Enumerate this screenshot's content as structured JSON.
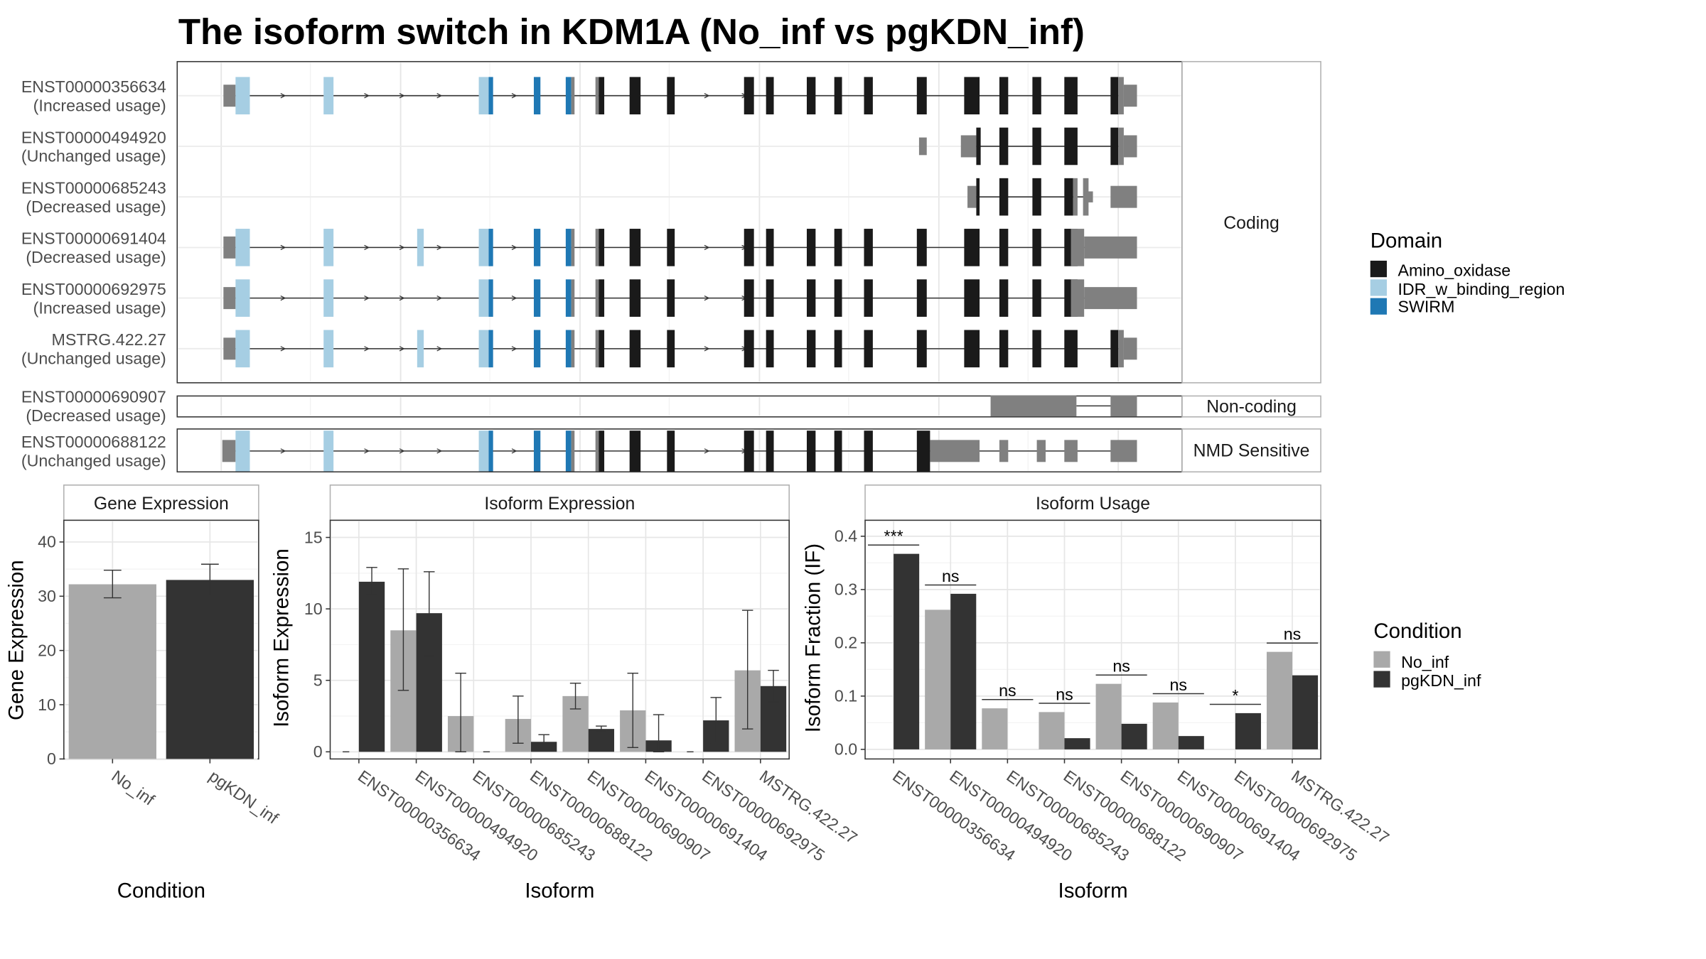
{
  "title": "The isoform switch in KDM1A (No_inf vs pgKDN_inf)",
  "colors": {
    "amino_oxidase": "#1a1a1a",
    "idr": "#a6cee3",
    "swirm": "#1f78b4",
    "utr": "#808080",
    "no_inf": "#a9a9a9",
    "pgkdn_inf": "#333333"
  },
  "structure": {
    "facets": {
      "coding": "Coding",
      "noncoding": "Non-coding",
      "nmd": "NMD Sensitive"
    },
    "legend": {
      "title": "Domain",
      "items": [
        {
          "label": "Amino_oxidase",
          "color": "#1a1a1a"
        },
        {
          "label": "IDR_w_binding_region",
          "color": "#a6cee3"
        },
        {
          "label": "SWIRM",
          "color": "#1f78b4"
        }
      ]
    },
    "transcripts": [
      {
        "id": "ENST00000356634",
        "usage": "(Increased usage)",
        "type": "full5",
        "utr_tail": "short",
        "facet": "coding"
      },
      {
        "id": "ENST00000494920",
        "usage": "(Unchanged usage)",
        "type": "short1",
        "facet": "coding"
      },
      {
        "id": "ENST00000685243",
        "usage": "(Decreased usage)",
        "type": "short2",
        "facet": "coding"
      },
      {
        "id": "ENST00000691404",
        "usage": "(Decreased usage)",
        "type": "full6",
        "utr_tail": "long",
        "facet": "coding"
      },
      {
        "id": "ENST00000692975",
        "usage": "(Increased usage)",
        "type": "full5",
        "utr_tail": "long",
        "facet": "coding"
      },
      {
        "id": "MSTRG.422.27",
        "usage": "(Unchanged usage)",
        "type": "full6",
        "utr_tail": "short",
        "facet": "coding"
      },
      {
        "id": "ENST00000690907",
        "usage": "(Decreased usage)",
        "type": "noncoding",
        "facet": "noncoding"
      },
      {
        "id": "ENST00000688122",
        "usage": "(Unchanged usage)",
        "type": "nmd",
        "facet": "nmd"
      }
    ]
  },
  "panels": {
    "gene": {
      "strip": "Gene Expression",
      "ylabel": "Gene Expression",
      "xlabel": "Condition"
    },
    "isoform_expression": {
      "strip": "Isoform Expression",
      "ylabel": "Isoform Expression",
      "xlabel": "Isoform"
    },
    "isoform_usage": {
      "strip": "Isoform Usage",
      "ylabel": "Isoform Fraction (IF)",
      "xlabel": "Isoform"
    },
    "condition_legend": {
      "title": "Condition",
      "items": [
        {
          "label": "No_inf",
          "color": "#a9a9a9"
        },
        {
          "label": "pgKDN_inf",
          "color": "#333333"
        }
      ]
    }
  },
  "chart_data": [
    {
      "type": "bar",
      "title": "Gene Expression",
      "xlabel": "Condition",
      "ylabel": "Gene Expression",
      "categories": [
        "No_inf",
        "pgKDN_inf"
      ],
      "values": [
        32.2,
        33.0
      ],
      "error": [
        [
          29.7,
          34.8
        ],
        [
          30.2,
          35.9
        ]
      ],
      "ylim": [
        0,
        44
      ],
      "yticks": [
        0,
        10,
        20,
        30,
        40
      ]
    },
    {
      "type": "bar",
      "title": "Isoform Expression",
      "xlabel": "Isoform",
      "ylabel": "Isoform Expression",
      "categories": [
        "ENST00000356634",
        "ENST00000494920",
        "ENST00000685243",
        "ENST00000688122",
        "ENST00000690907",
        "ENST00000691404",
        "ENST00000692975",
        "MSTRG.422.27"
      ],
      "series": [
        {
          "name": "No_inf",
          "values": [
            0.0,
            8.5,
            2.5,
            2.3,
            3.9,
            2.9,
            0.0,
            5.7
          ],
          "error": [
            [
              0.0,
              0.0
            ],
            [
              4.3,
              12.8
            ],
            [
              0.0,
              5.5
            ],
            [
              0.6,
              3.9
            ],
            [
              3.0,
              4.8
            ],
            [
              0.3,
              5.5
            ],
            [
              0.0,
              0.0
            ],
            [
              1.6,
              9.9
            ]
          ]
        },
        {
          "name": "pgKDN_inf",
          "values": [
            11.9,
            9.7,
            0.0,
            0.7,
            1.6,
            0.8,
            2.2,
            4.6
          ],
          "error": [
            [
              11.0,
              12.9
            ],
            [
              6.7,
              12.6
            ],
            [
              0.0,
              0.0
            ],
            [
              0.3,
              1.2
            ],
            [
              1.4,
              1.8
            ],
            [
              0.0,
              2.6
            ],
            [
              0.6,
              3.8
            ],
            [
              3.5,
              5.7
            ]
          ]
        }
      ],
      "ylim": [
        -0.5,
        16.2
      ],
      "yticks": [
        0,
        5,
        10,
        15
      ]
    },
    {
      "type": "bar",
      "title": "Isoform Usage",
      "xlabel": "Isoform",
      "ylabel": "Isoform Fraction (IF)",
      "categories": [
        "ENST00000356634",
        "ENST00000494920",
        "ENST00000685243",
        "ENST00000688122",
        "ENST00000690907",
        "ENST00000691404",
        "ENST00000692975",
        "MSTRG.422.27"
      ],
      "series": [
        {
          "name": "No_inf",
          "values": [
            0.0,
            0.262,
            0.077,
            0.07,
            0.123,
            0.088,
            0.0,
            0.183
          ]
        },
        {
          "name": "pgKDN_inf",
          "values": [
            0.367,
            0.292,
            0.0,
            0.021,
            0.048,
            0.025,
            0.068,
            0.139
          ]
        }
      ],
      "significance": [
        "***",
        "ns",
        "ns",
        "ns",
        "ns",
        "ns",
        "*",
        "ns"
      ],
      "ylim": [
        -0.018,
        0.43
      ],
      "yticks": [
        0.0,
        0.1,
        0.2,
        0.3,
        0.4
      ]
    }
  ]
}
